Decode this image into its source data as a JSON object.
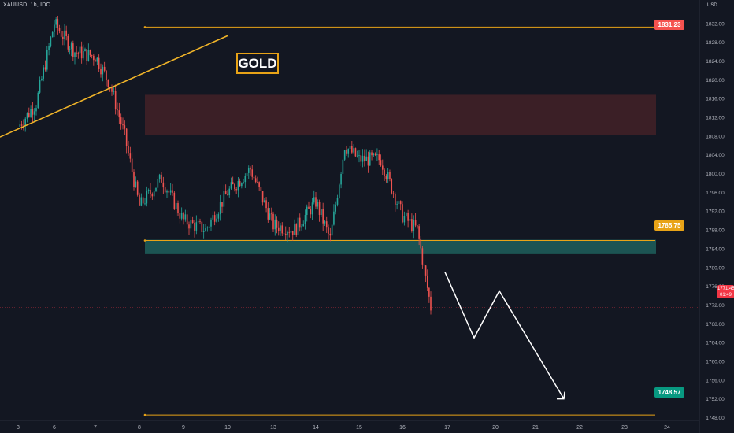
{
  "symbol_header": "XAUUSD, 1h, IDC",
  "currency": "USD",
  "label_gold": "GOLD",
  "levels": {
    "top": "1831.23",
    "mid": "1785.75",
    "bottom": "1748.57"
  },
  "last_price": {
    "price": "1771.45",
    "countdown": "01:49"
  },
  "colors": {
    "background": "#131722",
    "bull": "#26a69a",
    "bear": "#ef5350",
    "level_line": "#e8a317",
    "resistance_zone": "#4a2328",
    "support_zone": "#1f5f5c",
    "projection": "#ffffff",
    "badge_red": "#f23645",
    "badge_amber": "#e8a317",
    "badge_green": "#089981"
  },
  "chart_data": {
    "type": "candlestick",
    "x_tick_labels": [
      "3",
      "6",
      "7",
      "8",
      "9",
      "10",
      "13",
      "14",
      "15",
      "16",
      "17",
      "20",
      "21",
      "22",
      "23",
      "24"
    ],
    "y_tick_labels": [
      "1744.00",
      "1748.00",
      "1752.00",
      "1756.00",
      "1760.00",
      "1764.00",
      "1768.00",
      "1772.00",
      "1776.00",
      "1780.00",
      "1784.00",
      "1788.00",
      "1792.00",
      "1796.00",
      "1800.00",
      "1804.00",
      "1808.00",
      "1812.00",
      "1816.00",
      "1820.00",
      "1824.00",
      "1828.00",
      "1832.00",
      "1836.00"
    ],
    "ylim": [
      1742,
      1836
    ],
    "grid": false,
    "horizontal_levels": [
      1831.23,
      1785.75,
      1748.57
    ],
    "zones": [
      {
        "kind": "resistance",
        "from": 1808.2,
        "to": 1816.8
      },
      {
        "kind": "support",
        "from": 1783.0,
        "to": 1785.9
      }
    ],
    "trendline": [
      {
        "x": "3",
        "y": 1807.8
      },
      {
        "x": "10",
        "y": 1829.4
      }
    ],
    "ohlc_path": [
      {
        "x": "3",
        "y": 1810
      },
      {
        "x": "3",
        "y": 1815
      },
      {
        "x": "6",
        "y": 1832
      },
      {
        "x": "6",
        "y": 1826
      },
      {
        "x": "7",
        "y": 1825
      },
      {
        "x": "7",
        "y": 1819
      },
      {
        "x": "7",
        "y": 1808
      },
      {
        "x": "8",
        "y": 1793
      },
      {
        "x": "8",
        "y": 1799
      },
      {
        "x": "9",
        "y": 1790
      },
      {
        "x": "9",
        "y": 1788
      },
      {
        "x": "10",
        "y": 1796
      },
      {
        "x": "10",
        "y": 1801
      },
      {
        "x": "13",
        "y": 1789
      },
      {
        "x": "13",
        "y": 1788
      },
      {
        "x": "14",
        "y": 1794
      },
      {
        "x": "14",
        "y": 1786
      },
      {
        "x": "14",
        "y": 1806
      },
      {
        "x": "15",
        "y": 1803
      },
      {
        "x": "15",
        "y": 1803
      },
      {
        "x": "16",
        "y": 1791
      },
      {
        "x": "16",
        "y": 1788
      },
      {
        "x": "16",
        "y": 1771.5
      }
    ],
    "projection": [
      {
        "x": "16",
        "y": 1779
      },
      {
        "x": "20",
        "y": 1765
      },
      {
        "x": "20",
        "y": 1775
      },
      {
        "x": "22",
        "y": 1752
      }
    ]
  }
}
